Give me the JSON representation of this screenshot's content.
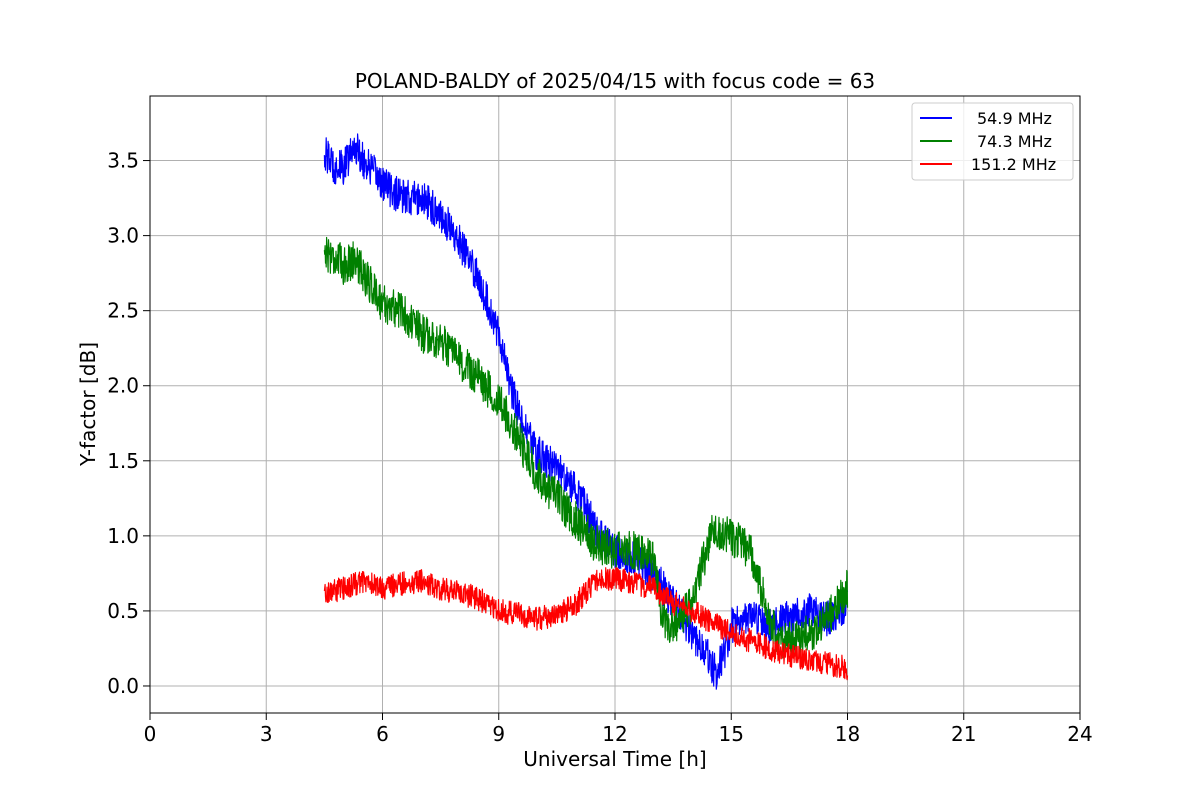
{
  "chart_data": {
    "type": "line",
    "title": "POLAND-BALDY of 2025/04/15 with focus code = 63",
    "xlabel": "Universal Time [h]",
    "ylabel": "Y-factor [dB]",
    "xlim": [
      0,
      24
    ],
    "ylim": [
      -0.18,
      3.93
    ],
    "xticks": [
      0,
      3,
      6,
      9,
      12,
      15,
      18,
      21,
      24
    ],
    "xtick_labels": [
      "0",
      "3",
      "6",
      "9",
      "12",
      "15",
      "18",
      "21",
      "24"
    ],
    "yticks": [
      0.0,
      0.5,
      1.0,
      1.5,
      2.0,
      2.5,
      3.0,
      3.5
    ],
    "ytick_labels": [
      "0.0",
      "0.5",
      "1.0",
      "1.5",
      "2.0",
      "2.5",
      "3.0",
      "3.5"
    ],
    "grid": true,
    "legend_position": "top-right",
    "series": [
      {
        "name": "54.9 MHz",
        "color": "#0000ff",
        "x": [
          4.5,
          4.8,
          5.0,
          5.3,
          5.5,
          6.0,
          6.5,
          7.0,
          7.5,
          8.0,
          8.5,
          9.0,
          9.3,
          9.6,
          10.0,
          10.5,
          11.0,
          11.5,
          12.0,
          12.5,
          13.0,
          13.5,
          14.0,
          14.4,
          14.6,
          14.8,
          15.0,
          15.5,
          16.0,
          16.5,
          17.0,
          17.5,
          18.0
        ],
        "y": [
          3.55,
          3.45,
          3.45,
          3.6,
          3.5,
          3.35,
          3.25,
          3.25,
          3.15,
          2.95,
          2.7,
          2.35,
          2.0,
          1.75,
          1.55,
          1.45,
          1.3,
          1.05,
          0.9,
          0.85,
          0.75,
          0.55,
          0.35,
          0.2,
          0.08,
          0.2,
          0.4,
          0.45,
          0.4,
          0.45,
          0.5,
          0.45,
          0.55
        ],
        "noise": 0.12
      },
      {
        "name": "74.3 MHz",
        "color": "#008000",
        "x": [
          4.5,
          4.8,
          5.0,
          5.3,
          5.5,
          6.0,
          6.5,
          7.0,
          7.5,
          8.0,
          8.5,
          9.0,
          9.5,
          10.0,
          10.5,
          11.0,
          11.5,
          12.0,
          12.5,
          13.0,
          13.2,
          13.5,
          14.0,
          14.5,
          15.0,
          15.5,
          16.0,
          16.2,
          16.5,
          17.0,
          17.5,
          18.0
        ],
        "y": [
          2.9,
          2.85,
          2.8,
          2.85,
          2.75,
          2.55,
          2.5,
          2.35,
          2.3,
          2.15,
          2.05,
          1.9,
          1.65,
          1.4,
          1.25,
          1.1,
          0.95,
          0.9,
          0.9,
          0.85,
          0.45,
          0.4,
          0.55,
          1.05,
          1.0,
          0.9,
          0.45,
          0.3,
          0.3,
          0.35,
          0.45,
          0.65
        ],
        "noise": 0.13
      },
      {
        "name": "151.2 MHz",
        "color": "#ff0000",
        "x": [
          4.5,
          5.0,
          5.5,
          6.0,
          6.5,
          7.0,
          7.5,
          8.0,
          8.5,
          9.0,
          9.5,
          10.0,
          10.5,
          11.0,
          11.5,
          12.0,
          12.5,
          13.0,
          13.5,
          14.0,
          14.5,
          15.0,
          15.5,
          16.0,
          16.5,
          17.0,
          17.5,
          18.0
        ],
        "y": [
          0.62,
          0.65,
          0.7,
          0.65,
          0.68,
          0.7,
          0.65,
          0.62,
          0.58,
          0.5,
          0.48,
          0.45,
          0.47,
          0.55,
          0.7,
          0.72,
          0.68,
          0.65,
          0.55,
          0.5,
          0.42,
          0.35,
          0.3,
          0.25,
          0.2,
          0.18,
          0.15,
          0.12
        ],
        "noise": 0.08
      }
    ]
  }
}
